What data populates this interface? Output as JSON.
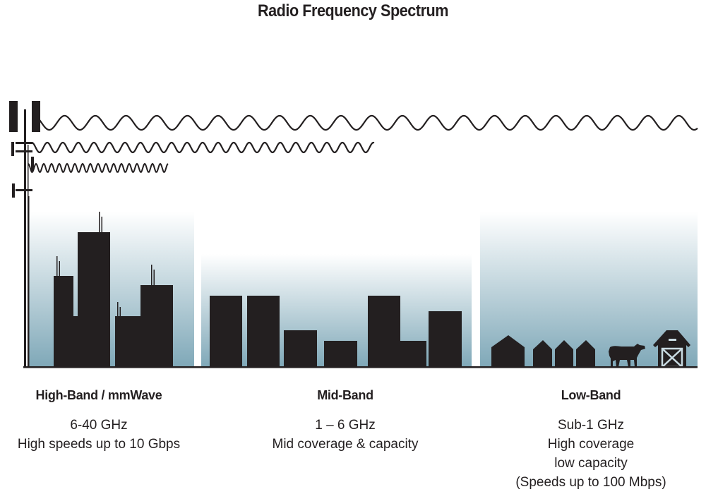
{
  "title": "Radio Frequency Spectrum",
  "colors": {
    "ink": "#231f20",
    "gradient_bottom": "#7fa8b8",
    "gradient_top": "#ffffff"
  },
  "bands": [
    {
      "name": "High-Band / mmWave",
      "lines": [
        "6-40 GHz",
        "High speeds up to 10 Gbps"
      ]
    },
    {
      "name": "Mid-Band",
      "lines": [
        "1 – 6 GHz",
        "Mid coverage & capacity"
      ]
    },
    {
      "name": "Low-Band",
      "lines": [
        "Sub-1 GHz",
        "High coverage",
        "low capacity",
        "(Speeds up to 100 Mbps)"
      ]
    }
  ],
  "icons": [
    "cell-tower-icon",
    "city-skyline-icon",
    "suburb-houses-icon",
    "cow-icon",
    "barn-icon"
  ]
}
